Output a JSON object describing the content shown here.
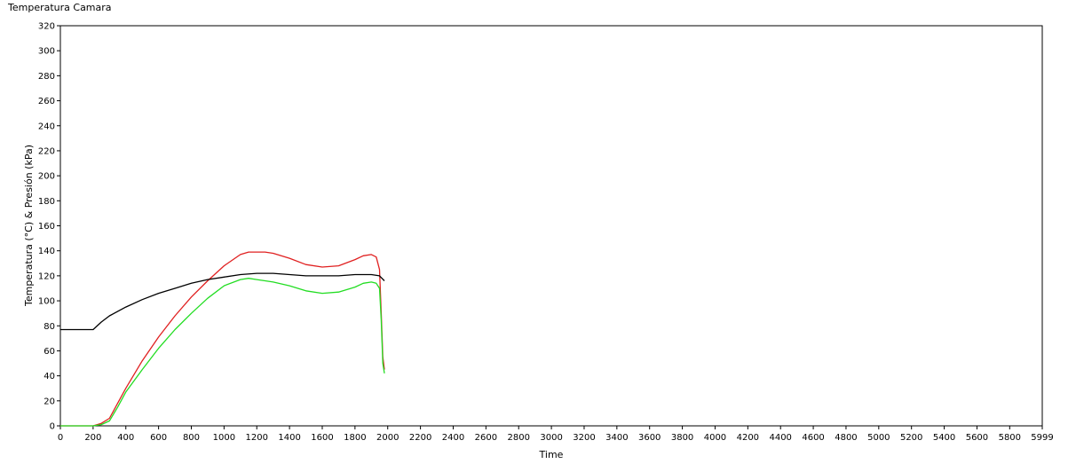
{
  "chart_data": {
    "type": "line",
    "title": "Temperatura Camara",
    "xlabel": "Time",
    "ylabel": "Temperatura (°C) & Presión (kPa)",
    "xlim": [
      0,
      5999
    ],
    "ylim": [
      0,
      320
    ],
    "x_ticks": [
      0,
      200,
      400,
      600,
      800,
      1000,
      1200,
      1400,
      1600,
      1800,
      2000,
      2200,
      2400,
      2600,
      2800,
      3000,
      3200,
      3400,
      3600,
      3800,
      4000,
      4200,
      4400,
      4600,
      4800,
      5000,
      5200,
      5400,
      5600,
      5800,
      5999
    ],
    "y_ticks": [
      0,
      20,
      40,
      60,
      80,
      100,
      120,
      140,
      160,
      180,
      200,
      220,
      240,
      260,
      280,
      300,
      320
    ],
    "grid": false,
    "series": [
      {
        "name": "red",
        "color": "#e02020",
        "x": [
          0,
          200,
          250,
          300,
          350,
          400,
          500,
          600,
          700,
          800,
          900,
          1000,
          1100,
          1150,
          1200,
          1250,
          1300,
          1400,
          1500,
          1600,
          1700,
          1800,
          1850,
          1900,
          1930,
          1950,
          1960,
          1970,
          1980
        ],
        "y": [
          0,
          0,
          2,
          6,
          18,
          30,
          52,
          71,
          88,
          103,
          116,
          128,
          137,
          139,
          139,
          139,
          138,
          134,
          129,
          127,
          128,
          133,
          136,
          137,
          135,
          125,
          90,
          55,
          45
        ]
      },
      {
        "name": "green",
        "color": "#22dd22",
        "x": [
          0,
          200,
          250,
          300,
          350,
          400,
          500,
          600,
          700,
          800,
          900,
          1000,
          1100,
          1150,
          1200,
          1250,
          1300,
          1400,
          1500,
          1600,
          1700,
          1800,
          1850,
          1900,
          1930,
          1950,
          1960,
          1970,
          1980
        ],
        "y": [
          0,
          0,
          1,
          4,
          15,
          27,
          45,
          62,
          77,
          90,
          102,
          112,
          117,
          118,
          117,
          116,
          115,
          112,
          108,
          106,
          107,
          111,
          114,
          115,
          114,
          110,
          85,
          50,
          42
        ]
      },
      {
        "name": "black",
        "color": "#000000",
        "x": [
          0,
          200,
          250,
          300,
          400,
          500,
          600,
          700,
          800,
          900,
          1000,
          1100,
          1200,
          1300,
          1400,
          1500,
          1600,
          1700,
          1800,
          1900,
          1950,
          1980
        ],
        "y": [
          77,
          77,
          83,
          88,
          95,
          101,
          106,
          110,
          114,
          117,
          119,
          121,
          122,
          122,
          121,
          120,
          120,
          120,
          121,
          121,
          120,
          116
        ]
      }
    ]
  }
}
